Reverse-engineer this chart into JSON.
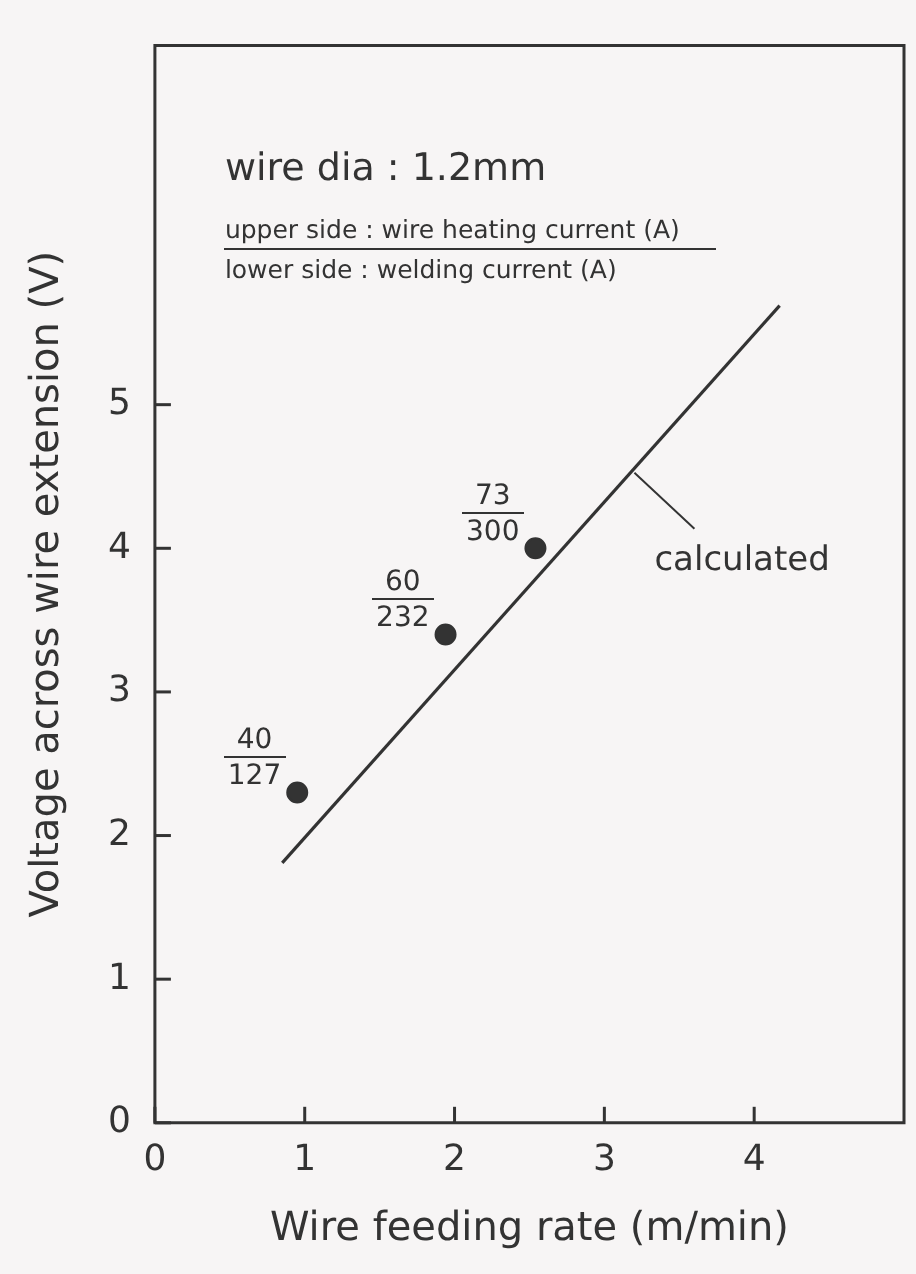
{
  "chart_data": {
    "type": "scatter",
    "xlabel": "Wire feeding rate (m/min)",
    "ylabel": "Voltage across wire extension (V)",
    "xlim": [
      0,
      5
    ],
    "ylim": [
      0,
      7.5
    ],
    "xticks": [
      0,
      1,
      2,
      3,
      4
    ],
    "yticks": [
      0,
      1,
      2,
      3,
      4,
      5
    ],
    "grid": false,
    "series": [
      {
        "color": "#333333",
        "marker": "circle",
        "x": [
          0.95,
          1.94,
          2.54
        ],
        "values": [
          2.3,
          3.4,
          4.0
        ]
      },
      {
        "type": "line",
        "name": "calculated",
        "marker": "none",
        "color": "#333333",
        "x": [
          0.85,
          4.17
        ],
        "values": [
          1.81,
          5.69
        ]
      }
    ],
    "annotations": [
      "wire dia : 1.2mm",
      "upper side : wire heating current (A)",
      "lower side : welding current (A)",
      {
        "text": "40",
        "x": 0.95,
        "y": 2.3
      },
      {
        "text": "127",
        "x": 0.95,
        "y": 2.3
      },
      {
        "text": "60",
        "x": 1.94,
        "y": 3.4
      },
      {
        "text": "232",
        "x": 1.94,
        "y": 3.4
      },
      {
        "text": "73",
        "x": 2.54,
        "y": 4.0
      },
      {
        "text": "300",
        "x": 2.54,
        "y": 4.0
      }
    ]
  }
}
